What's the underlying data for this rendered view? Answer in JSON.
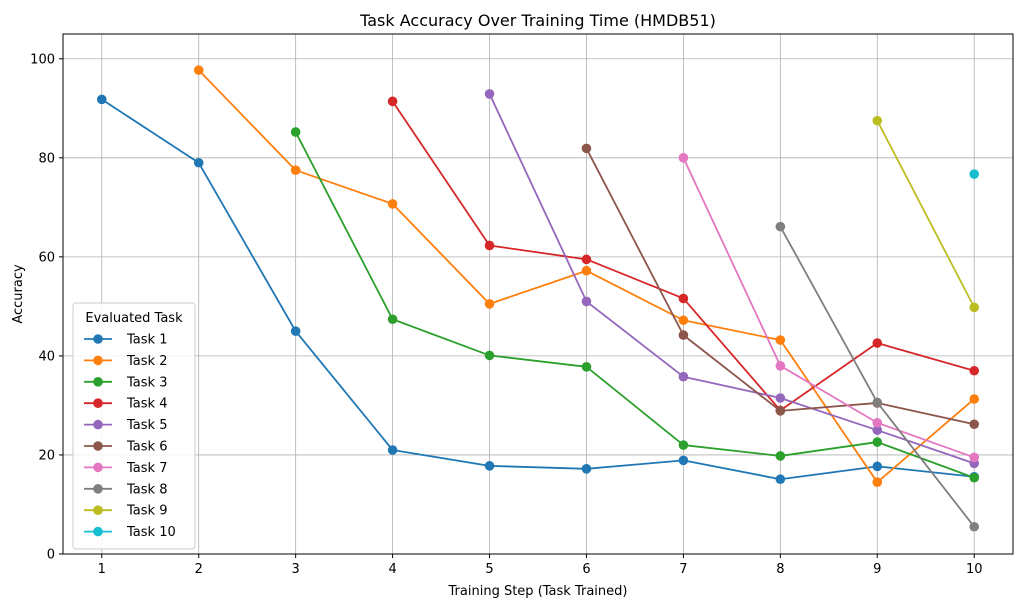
{
  "chart_data": {
    "type": "line",
    "title": "Task Accuracy Over Training Time (HMDB51)",
    "xlabel": "Training Step (Task Trained)",
    "ylabel": "Accuracy",
    "xlim": [
      0.6,
      10.4
    ],
    "ylim": [
      0,
      105
    ],
    "xticks": [
      1,
      2,
      3,
      4,
      5,
      6,
      7,
      8,
      9,
      10
    ],
    "yticks": [
      0,
      20,
      40,
      60,
      80,
      100
    ],
    "grid": true,
    "legend": {
      "title": "Evaluated Task",
      "placement": "lower-left"
    },
    "series": [
      {
        "name": "Task 1",
        "color": "#1f77b4",
        "x": [
          1,
          2,
          3,
          4,
          5,
          6,
          7,
          8,
          9,
          10
        ],
        "y": [
          91.8,
          79.0,
          45.0,
          21.0,
          17.8,
          17.2,
          18.9,
          15.1,
          17.7,
          15.6
        ]
      },
      {
        "name": "Task 2",
        "color": "#ff7f0e",
        "x": [
          2,
          3,
          4,
          5,
          6,
          7,
          8,
          9,
          10
        ],
        "y": [
          97.7,
          77.5,
          70.7,
          50.5,
          57.2,
          47.2,
          43.2,
          14.5,
          31.3
        ]
      },
      {
        "name": "Task 3",
        "color": "#2ca02c",
        "x": [
          3,
          4,
          5,
          6,
          7,
          8,
          9,
          10
        ],
        "y": [
          85.2,
          47.4,
          40.1,
          37.8,
          22.0,
          19.8,
          22.6,
          15.4
        ]
      },
      {
        "name": "Task 4",
        "color": "#d62728",
        "x": [
          4,
          5,
          6,
          7,
          8,
          9,
          10
        ],
        "y": [
          91.4,
          62.3,
          59.5,
          51.6,
          29.0,
          42.6,
          37.0
        ]
      },
      {
        "name": "Task 5",
        "color": "#9467bd",
        "x": [
          5,
          6,
          7,
          8,
          9,
          10
        ],
        "y": [
          92.9,
          51.0,
          35.8,
          31.5,
          25.0,
          18.3
        ]
      },
      {
        "name": "Task 6",
        "color": "#8c564b",
        "x": [
          6,
          7,
          8,
          9,
          10
        ],
        "y": [
          81.9,
          44.2,
          28.9,
          30.5,
          26.2
        ]
      },
      {
        "name": "Task 7",
        "color": "#e377c2",
        "x": [
          7,
          8,
          9,
          10
        ],
        "y": [
          80.0,
          38.0,
          26.5,
          19.5
        ]
      },
      {
        "name": "Task 8",
        "color": "#7f7f7f",
        "x": [
          8,
          9,
          10
        ],
        "y": [
          66.1,
          30.6,
          5.5
        ]
      },
      {
        "name": "Task 9",
        "color": "#bcbd22",
        "x": [
          9,
          10
        ],
        "y": [
          87.5,
          49.8
        ]
      },
      {
        "name": "Task 10",
        "color": "#17becf",
        "x": [
          10
        ],
        "y": [
          76.7
        ]
      }
    ]
  }
}
